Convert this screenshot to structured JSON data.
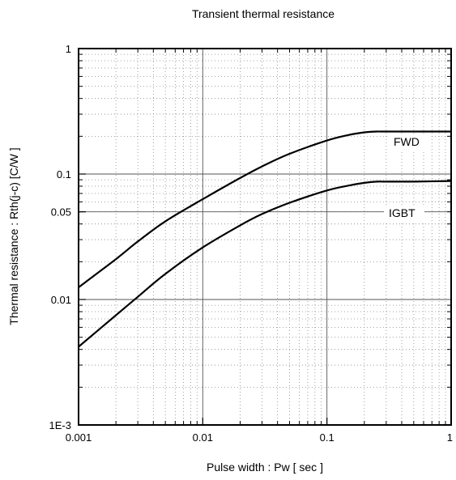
{
  "chart_data": {
    "type": "line",
    "title": "Transient thermal resistance",
    "xlabel": "Pulse width :  Pw [ sec ]",
    "ylabel": "Thermal resistance :  Rth(j-c)   [C/W ]",
    "xscale": "log",
    "yscale": "log",
    "xlim": [
      0.001,
      1
    ],
    "ylim": [
      0.001,
      1
    ],
    "grid": true,
    "x_ticks": [
      {
        "value": 0.001,
        "label": "0.001"
      },
      {
        "value": 0.01,
        "label": "0.01"
      },
      {
        "value": 0.1,
        "label": "0.1"
      },
      {
        "value": 1,
        "label": "1"
      }
    ],
    "y_ticks": [
      {
        "value": 0.001,
        "label": "1E-3"
      },
      {
        "value": 0.01,
        "label": "0.01"
      },
      {
        "value": 0.05,
        "label": "0.05"
      },
      {
        "value": 0.1,
        "label": "0.1"
      },
      {
        "value": 1,
        "label": "1"
      }
    ],
    "series": [
      {
        "name": "FWD",
        "x": [
          0.001,
          0.002,
          0.003,
          0.005,
          0.01,
          0.02,
          0.03,
          0.05,
          0.1,
          0.15,
          0.2,
          0.25,
          0.3,
          0.5,
          1
        ],
        "y": [
          0.0125,
          0.021,
          0.029,
          0.042,
          0.063,
          0.093,
          0.115,
          0.145,
          0.185,
          0.205,
          0.215,
          0.218,
          0.218,
          0.218,
          0.218
        ]
      },
      {
        "name": "IGBT",
        "x": [
          0.001,
          0.002,
          0.003,
          0.005,
          0.01,
          0.02,
          0.03,
          0.05,
          0.1,
          0.15,
          0.2,
          0.25,
          0.3,
          0.5,
          1
        ],
        "y": [
          0.0042,
          0.0075,
          0.0105,
          0.016,
          0.026,
          0.039,
          0.048,
          0.059,
          0.074,
          0.081,
          0.085,
          0.087,
          0.087,
          0.087,
          0.088
        ]
      }
    ]
  }
}
